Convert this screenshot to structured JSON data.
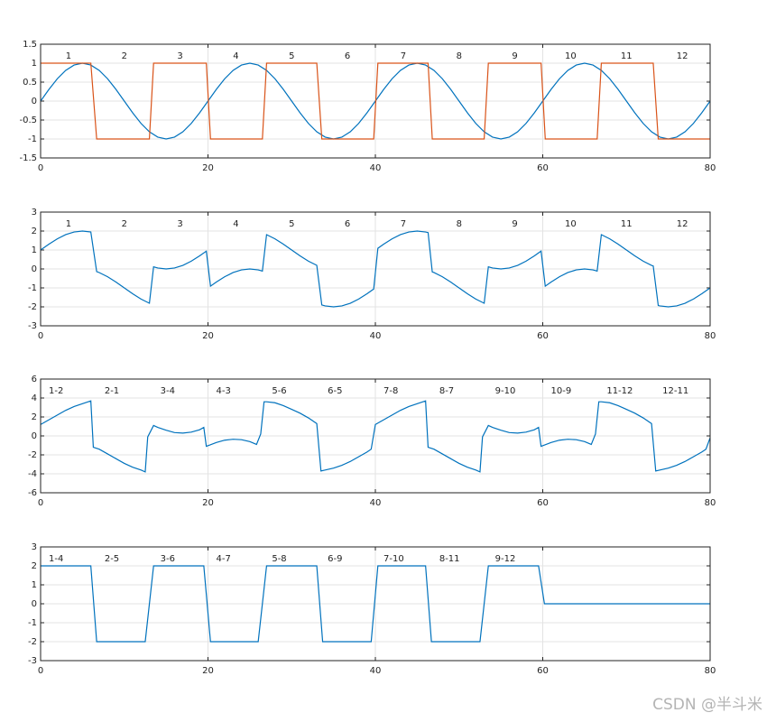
{
  "watermark": "CSDN @半斗米",
  "chart_data": [
    {
      "type": "line",
      "xlim": [
        0,
        80
      ],
      "xticks": [
        0,
        20,
        40,
        60,
        80
      ],
      "ylim": [
        -1.5,
        1.5
      ],
      "yticks": [
        -1.5,
        -1,
        -0.5,
        0,
        0.5,
        1,
        1.5
      ],
      "grid": true,
      "annotations": [
        "1",
        "2",
        "3",
        "4",
        "5",
        "6",
        "7",
        "8",
        "9",
        "10",
        "11",
        "12"
      ],
      "annotation_align": "center",
      "series": [
        {
          "color": "#0072bd",
          "x": [
            0,
            1,
            2,
            3,
            4,
            5,
            6,
            7,
            8,
            9,
            10,
            11,
            12,
            13,
            14,
            15,
            16,
            17,
            18,
            19,
            20,
            21,
            22,
            23,
            24,
            25,
            26,
            27,
            28,
            29,
            30,
            31,
            32,
            33,
            34,
            35,
            36,
            37,
            38,
            39,
            40,
            41,
            42,
            43,
            44,
            45,
            46,
            47,
            48,
            49,
            50,
            51,
            52,
            53,
            54,
            55,
            56,
            57,
            58,
            59,
            60,
            61,
            62,
            63,
            64,
            65,
            66,
            67,
            68,
            69,
            70,
            71,
            72,
            73,
            74,
            75,
            76,
            77,
            78,
            79,
            80
          ],
          "values": [
            0,
            0.31,
            0.59,
            0.81,
            0.95,
            1,
            0.95,
            0.81,
            0.59,
            0.31,
            0,
            -0.31,
            -0.59,
            -0.81,
            -0.95,
            -1,
            -0.95,
            -0.81,
            -0.59,
            -0.31,
            0,
            0.31,
            0.59,
            0.81,
            0.95,
            1,
            0.95,
            0.81,
            0.59,
            0.31,
            0,
            -0.31,
            -0.59,
            -0.81,
            -0.95,
            -1,
            -0.95,
            -0.81,
            -0.59,
            -0.31,
            0,
            0.31,
            0.59,
            0.81,
            0.95,
            1,
            0.95,
            0.81,
            0.59,
            0.31,
            0,
            -0.31,
            -0.59,
            -0.81,
            -0.95,
            -1,
            -0.95,
            -0.81,
            -0.59,
            -0.31,
            0,
            0.31,
            0.59,
            0.81,
            0.95,
            1,
            0.95,
            0.81,
            0.59,
            0.31,
            0,
            -0.31,
            -0.59,
            -0.81,
            -0.95,
            -1,
            -0.95,
            -0.81,
            -0.59,
            -0.31,
            0
          ]
        },
        {
          "color": "#d95319",
          "x": [
            0,
            6,
            6.7,
            13,
            13.5,
            19.8,
            20.3,
            26.5,
            27,
            33,
            33.6,
            39.8,
            40.3,
            46.3,
            46.8,
            53,
            53.5,
            59.8,
            60.3,
            66.5,
            67,
            73.2,
            73.8,
            80
          ],
          "values": [
            1,
            1,
            -1,
            -1,
            1,
            1,
            -1,
            -1,
            1,
            1,
            -1,
            -1,
            1,
            1,
            -1,
            -1,
            1,
            1,
            -1,
            -1,
            1,
            1,
            -1,
            -1
          ]
        }
      ]
    },
    {
      "type": "line",
      "xlim": [
        0,
        80
      ],
      "xticks": [
        0,
        20,
        40,
        60,
        80
      ],
      "ylim": [
        -3,
        3
      ],
      "yticks": [
        -3,
        -2,
        -1,
        0,
        1,
        2,
        3
      ],
      "grid": true,
      "annotations": [
        "1",
        "2",
        "3",
        "4",
        "5",
        "6",
        "7",
        "8",
        "9",
        "10",
        "11",
        "12"
      ],
      "annotation_align": "center",
      "series": [
        {
          "color": "#0072bd",
          "x": [
            0,
            1,
            2,
            3,
            4,
            5,
            6,
            6.7,
            7,
            8,
            9,
            10,
            11,
            12,
            13,
            13.5,
            14,
            15,
            16,
            17,
            18,
            19,
            19.8,
            20.3,
            21,
            22,
            23,
            24,
            25,
            26,
            26.5,
            27,
            28,
            29,
            30,
            31,
            32,
            33,
            33.6,
            34,
            35,
            36,
            37,
            38,
            39,
            39.8,
            40.3,
            41,
            42,
            43,
            44,
            45,
            46,
            46.3,
            46.8,
            47,
            48,
            49,
            50,
            51,
            52,
            53,
            53.5,
            54,
            55,
            56,
            57,
            58,
            59,
            59.8,
            60.3,
            61,
            62,
            63,
            64,
            65,
            66,
            66.5,
            67,
            68,
            69,
            70,
            71,
            72,
            73,
            73.2,
            73.8,
            74,
            75,
            76,
            77,
            78,
            79,
            80
          ],
          "values": [
            1,
            1.31,
            1.59,
            1.81,
            1.95,
            2,
            1.95,
            -0.14,
            -0.19,
            -0.41,
            -0.69,
            -1,
            -1.31,
            -1.59,
            -1.81,
            0.11,
            0.05,
            0,
            0.05,
            0.19,
            0.41,
            0.69,
            0.94,
            -0.91,
            -0.69,
            -0.41,
            -0.19,
            -0.05,
            0,
            -0.05,
            -0.11,
            1.81,
            1.59,
            1.31,
            1,
            0.69,
            0.41,
            0.19,
            -1.9,
            -1.95,
            -2,
            -1.95,
            -1.81,
            -1.59,
            -1.31,
            -1.06,
            1.09,
            1.31,
            1.59,
            1.81,
            1.95,
            2,
            1.95,
            1.92,
            -0.16,
            -0.19,
            -0.41,
            -0.69,
            -1,
            -1.31,
            -1.59,
            -1.81,
            0.11,
            0.05,
            0,
            0.05,
            0.19,
            0.41,
            0.69,
            0.94,
            -0.91,
            -0.69,
            -0.41,
            -0.19,
            -0.05,
            0,
            -0.05,
            -0.11,
            1.81,
            1.59,
            1.31,
            1,
            0.69,
            0.41,
            0.19,
            0.16,
            -1.93,
            -1.95,
            -2,
            -1.95,
            -1.81,
            -1.59,
            -1.31,
            -1
          ]
        }
      ]
    },
    {
      "type": "line",
      "xlim": [
        0,
        80
      ],
      "xticks": [
        0,
        20,
        40,
        60,
        80
      ],
      "ylim": [
        -6,
        6
      ],
      "yticks": [
        -6,
        -4,
        -2,
        0,
        2,
        4,
        6
      ],
      "grid": true,
      "annotations": [
        "1-2",
        "2-1",
        "3-4",
        "4-3",
        "5-6",
        "6-5",
        "7-8",
        "8-7",
        "9-10",
        "10-9",
        "11-12",
        "12-11"
      ],
      "annotation_align": "start",
      "series": [
        {
          "color": "#0072bd",
          "x": [
            0,
            1,
            2,
            3,
            4,
            5,
            6,
            6.3,
            7,
            8,
            9,
            10,
            11,
            12,
            12.5,
            12.8,
            13.5,
            14,
            15,
            16,
            17,
            18,
            19,
            19.5,
            19.8,
            21,
            22,
            23,
            24,
            25,
            25.8,
            26.3,
            26.7,
            27,
            28,
            29,
            30,
            31,
            32,
            33,
            33.5,
            34,
            35,
            36,
            37,
            38,
            39,
            39.5,
            40,
            41,
            42,
            43,
            44,
            45,
            46,
            46.3,
            47,
            48,
            49,
            50,
            51,
            52,
            52.5,
            52.8,
            53.5,
            54,
            55,
            56,
            57,
            58,
            59,
            59.5,
            59.8,
            61,
            62,
            63,
            64,
            65,
            65.8,
            66.3,
            66.7,
            67,
            68,
            69,
            70,
            71,
            72,
            73,
            73.5,
            74,
            75,
            76,
            77,
            78,
            79,
            79.5,
            80
          ],
          "values": [
            1.2,
            1.7,
            2.2,
            2.7,
            3.1,
            3.4,
            3.7,
            -1.2,
            -1.4,
            -1.9,
            -2.4,
            -2.9,
            -3.3,
            -3.6,
            -3.8,
            -0.1,
            1.1,
            0.9,
            0.6,
            0.35,
            0.3,
            0.4,
            0.65,
            0.9,
            -1.1,
            -0.7,
            -0.45,
            -0.35,
            -0.4,
            -0.6,
            -0.9,
            0.2,
            3.6,
            3.6,
            3.5,
            3.2,
            2.8,
            2.4,
            1.9,
            1.3,
            -3.7,
            -3.6,
            -3.4,
            -3.1,
            -2.7,
            -2.2,
            -1.7,
            -1.4,
            1.2,
            1.7,
            2.2,
            2.7,
            3.1,
            3.4,
            3.7,
            -1.2,
            -1.4,
            -1.9,
            -2.4,
            -2.9,
            -3.3,
            -3.6,
            -3.8,
            -0.1,
            1.1,
            0.9,
            0.6,
            0.35,
            0.3,
            0.4,
            0.65,
            0.9,
            -1.1,
            -0.7,
            -0.45,
            -0.35,
            -0.4,
            -0.6,
            -0.9,
            0.2,
            3.6,
            3.6,
            3.5,
            3.2,
            2.8,
            2.4,
            1.9,
            1.3,
            -3.7,
            -3.6,
            -3.4,
            -3.1,
            -2.7,
            -2.2,
            -1.7,
            -1.4,
            -0.2
          ]
        }
      ]
    },
    {
      "type": "line",
      "xlim": [
        0,
        80
      ],
      "xticks": [
        0,
        20,
        40,
        60,
        80
      ],
      "ylim": [
        -3,
        3
      ],
      "yticks": [
        -3,
        -2,
        -1,
        0,
        1,
        2,
        3
      ],
      "grid": true,
      "annotations": [
        "1-4",
        "2-5",
        "3-6",
        "4-7",
        "5-8",
        "6-9",
        "7-10",
        "8-11",
        "9-12"
      ],
      "annotation_align": "start",
      "series": [
        {
          "color": "#0072bd",
          "x": [
            0,
            6,
            6.7,
            12.5,
            13.5,
            19.5,
            20.3,
            26,
            27,
            33,
            33.7,
            39.5,
            40.3,
            46,
            46.7,
            52.5,
            53.5,
            59.5,
            60.2,
            80
          ],
          "values": [
            2,
            2,
            -2,
            -2,
            2,
            2,
            -2,
            -2,
            2,
            2,
            -2,
            -2,
            2,
            2,
            -2,
            -2,
            2,
            2,
            0,
            0
          ]
        }
      ]
    }
  ]
}
